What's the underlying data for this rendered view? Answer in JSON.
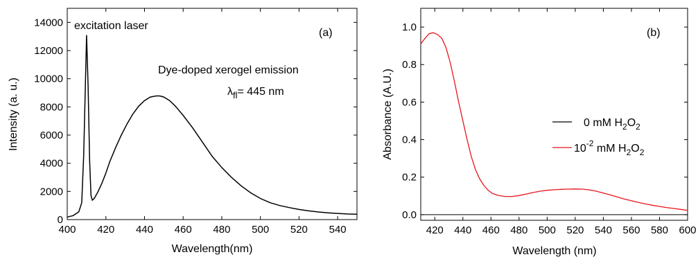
{
  "chart_data": [
    {
      "type": "line",
      "panel_label": "(a)",
      "xlabel": "Wavelength(nm)",
      "ylabel": "Intensity (a. u.)",
      "xlim": [
        400,
        550
      ],
      "ylim": [
        0,
        15000
      ],
      "xticks": [
        400,
        420,
        440,
        460,
        480,
        500,
        520,
        540
      ],
      "yticks": [
        0,
        2000,
        4000,
        6000,
        8000,
        10000,
        12000,
        14000
      ],
      "annotations": {
        "excitation": "excitation laser",
        "emission": "Dye-doped xerogel emission",
        "lambda_symbol": "λ",
        "lambda_sub": "fl",
        "lambda_value": "= 445 nm"
      },
      "series": [
        {
          "color": "#000000",
          "x": [
            400,
            403,
            406,
            407.5,
            408.5,
            409.3,
            410,
            410.8,
            411.6,
            412.3,
            413,
            414,
            416,
            418,
            420,
            422,
            425,
            428,
            431,
            434,
            437,
            440,
            443,
            446,
            448,
            450,
            453,
            456,
            460,
            465,
            470,
            475,
            480,
            485,
            490,
            495,
            500,
            505,
            510,
            515,
            520,
            525,
            530,
            535,
            540,
            545,
            550
          ],
          "y": [
            180,
            280,
            550,
            1200,
            4500,
            9000,
            13100,
            9500,
            4200,
            1700,
            1380,
            1500,
            2000,
            2600,
            3300,
            4100,
            5100,
            6000,
            6800,
            7500,
            8050,
            8450,
            8700,
            8780,
            8780,
            8700,
            8450,
            8050,
            7400,
            6500,
            5500,
            4500,
            3700,
            3000,
            2400,
            1900,
            1500,
            1200,
            1000,
            850,
            720,
            620,
            540,
            480,
            440,
            400,
            380
          ]
        }
      ]
    },
    {
      "type": "line",
      "panel_label": "(b)",
      "xlabel": "Wavelength (nm)",
      "ylabel": "Absorbance (A.U.)",
      "xlim": [
        410,
        600
      ],
      "ylim": [
        -0.03,
        1.1
      ],
      "xticks": [
        420,
        440,
        460,
        480,
        500,
        520,
        540,
        560,
        580,
        600
      ],
      "yticks": [
        0.0,
        0.2,
        0.4,
        0.6,
        0.8,
        1.0
      ],
      "yticklabels": [
        "0.0",
        "0.2",
        "0.4",
        "0.6",
        "0.8",
        "1.0"
      ],
      "legend_placement": "center-right",
      "series": [
        {
          "legend_parts": [
            "0 mM H",
            "2",
            "O",
            "2"
          ],
          "color": "#000000",
          "x": [
            410,
            600
          ],
          "y": [
            0.0,
            0.0
          ]
        },
        {
          "legend_parts": [
            "10",
            "-2",
            " mM H",
            "2",
            "O",
            "2"
          ],
          "color": "#e8141b",
          "x": [
            410,
            413,
            416,
            419,
            422,
            425,
            428,
            431,
            434,
            437,
            440,
            443,
            446,
            449,
            452,
            455,
            458,
            461,
            465,
            470,
            475,
            480,
            485,
            490,
            495,
            500,
            505,
            510,
            515,
            520,
            525,
            530,
            535,
            540,
            545,
            550,
            555,
            560,
            565,
            570,
            575,
            580,
            585,
            590,
            595,
            600
          ],
          "y": [
            0.91,
            0.94,
            0.965,
            0.97,
            0.96,
            0.94,
            0.89,
            0.81,
            0.71,
            0.6,
            0.5,
            0.4,
            0.31,
            0.24,
            0.19,
            0.155,
            0.13,
            0.113,
            0.103,
            0.097,
            0.097,
            0.102,
            0.11,
            0.118,
            0.125,
            0.13,
            0.133,
            0.135,
            0.136,
            0.137,
            0.136,
            0.132,
            0.125,
            0.115,
            0.105,
            0.094,
            0.083,
            0.074,
            0.065,
            0.057,
            0.05,
            0.044,
            0.038,
            0.033,
            0.028,
            0.023
          ]
        }
      ]
    }
  ]
}
